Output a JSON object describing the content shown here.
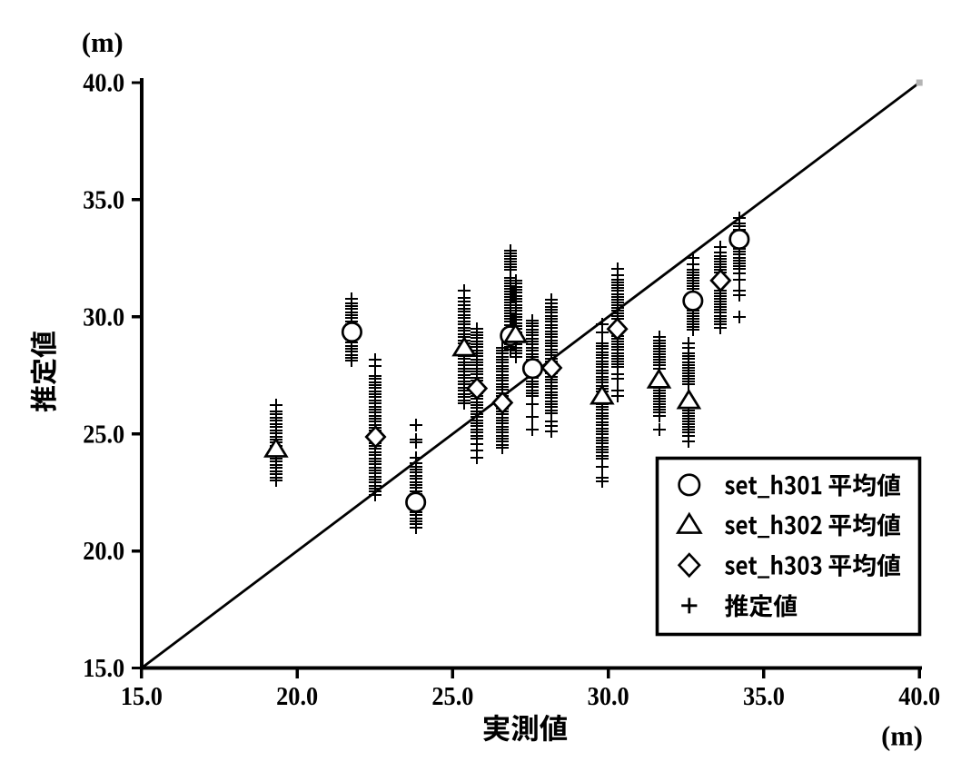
{
  "chart_data": {
    "type": "scatter",
    "title": "",
    "xlabel": "実測値",
    "ylabel": "推定値",
    "x_unit": "(m)",
    "y_unit": "(m)",
    "xlim": [
      15.0,
      40.0
    ],
    "ylim": [
      15.0,
      40.0
    ],
    "x_ticks": [
      "15.0",
      "20.0",
      "25.0",
      "30.0",
      "35.0",
      "40.0"
    ],
    "y_ticks": [
      "15.0",
      "20.0",
      "25.0",
      "30.0",
      "35.0",
      "40.0"
    ],
    "grid": false,
    "reference_line": {
      "x1": 15.0,
      "y1": 15.0,
      "x2": 40.0,
      "y2": 40.0
    },
    "legend_position": "lower right",
    "legend": [
      {
        "marker": "circle",
        "label": "set_h301 平均値"
      },
      {
        "marker": "triangle",
        "label": "set_h302 平均値"
      },
      {
        "marker": "diamond",
        "label": "set_h303 平均値"
      },
      {
        "marker": "plus",
        "label": "推定値"
      }
    ],
    "series": [
      {
        "name": "set_h301 平均値",
        "marker": "circle",
        "points": [
          [
            21.76,
            29.35
          ],
          [
            23.81,
            22.08
          ],
          [
            26.85,
            29.19
          ],
          [
            27.57,
            27.79
          ],
          [
            32.72,
            30.68
          ],
          [
            34.21,
            33.31
          ]
        ]
      },
      {
        "name": "set_h302 平均値",
        "marker": "triangle",
        "points": [
          [
            19.32,
            24.35
          ],
          [
            25.37,
            28.67
          ],
          [
            27.02,
            29.24
          ],
          [
            29.8,
            26.61
          ],
          [
            31.63,
            27.3
          ],
          [
            32.59,
            26.42
          ]
        ]
      },
      {
        "name": "set_h303 平均値",
        "marker": "diamond",
        "points": [
          [
            22.52,
            24.87
          ],
          [
            25.78,
            26.94
          ],
          [
            26.6,
            26.33
          ],
          [
            28.18,
            27.82
          ],
          [
            30.29,
            29.48
          ],
          [
            33.61,
            31.55
          ]
        ]
      },
      {
        "name": "推定値",
        "marker": "plus",
        "clusters": [
          {
            "x": 19.32,
            "y": [
              26.23,
              25.97,
              25.835,
              25.7,
              25.565,
              25.43,
              25.295,
              25.16,
              25.025,
              24.89,
              24.755,
              24.62,
              24.485,
              24.35,
              24.215,
              24.08,
              23.945,
              23.81,
              23.675,
              23.54,
              23.405,
              23.27,
              23.135,
              23.0
            ]
          },
          {
            "x": 21.76,
            "y": [
              30.78,
              30.59,
              30.46,
              30.33,
              30.2,
              30.07,
              29.94,
              29.81,
              29.68,
              29.55,
              29.42,
              29.29,
              29.16,
              29.03,
              28.9,
              28.77,
              28.64,
              28.51,
              28.38,
              28.25,
              28.12
            ]
          },
          {
            "x": 22.52,
            "y": [
              28.15,
              27.9,
              27.47,
              27.34,
              27.21,
              27.08,
              26.95,
              26.82,
              26.69,
              26.56,
              26.43,
              26.3,
              26.17,
              26.04,
              25.91,
              25.78,
              25.65,
              25.52,
              25.39,
              25.26,
              25.13,
              25.0,
              24.87,
              24.74,
              24.61,
              24.48,
              24.35,
              24.22,
              24.09,
              23.96,
              23.83,
              23.7,
              23.57,
              23.44,
              23.31,
              23.18,
              23.05,
              22.92,
              22.79,
              22.66,
              22.53,
              22.4
            ]
          },
          {
            "x": 23.81,
            "y": [
              25.36,
              24.77,
              24.62,
              23.97,
              23.73,
              23.6,
              23.47,
              23.34,
              23.21,
              23.08,
              22.95,
              22.82,
              22.69,
              22.56,
              22.43,
              22.3,
              22.17,
              22.04,
              21.91,
              21.78,
              21.65,
              21.52,
              21.39,
              21.26,
              21.13,
              21.0
            ]
          },
          {
            "x": 25.37,
            "y": [
              31.1,
              30.81,
              30.64,
              30.485,
              30.35,
              30.215,
              30.08,
              29.945,
              29.81,
              29.675,
              29.54,
              29.405,
              29.27,
              29.135,
              29.0,
              28.865,
              28.73,
              28.595,
              28.46,
              28.325,
              28.19,
              28.055,
              27.92,
              27.785,
              27.65,
              27.515,
              27.38,
              27.245,
              27.11,
              26.975,
              26.84,
              26.705,
              26.57,
              26.435,
              26.3
            ]
          },
          {
            "x": 25.78,
            "y": [
              29.48,
              29.35,
              29.22,
              29.09,
              28.96,
              28.83,
              28.7,
              28.57,
              28.44,
              28.31,
              28.18,
              28.05,
              27.92,
              27.79,
              27.66,
              27.53,
              27.4,
              27.27,
              27.14,
              27.01,
              26.88,
              26.75,
              26.62,
              26.49,
              26.36,
              26.23,
              26.1,
              25.97,
              25.84,
              25.71,
              25.58,
              25.45,
              25.32,
              25.19,
              25.06,
              24.93,
              24.8,
              24.57,
              24.28,
              23.99
            ]
          },
          {
            "x": 26.6,
            "y": [
              28.69,
              28.56,
              28.43,
              28.3,
              28.17,
              28.04,
              27.91,
              27.78,
              27.65,
              27.52,
              27.39,
              27.26,
              27.13,
              27.0,
              26.87,
              26.74,
              26.61,
              26.48,
              26.35,
              26.22,
              26.09,
              25.96,
              25.83,
              25.7,
              25.57,
              25.44,
              25.31,
              25.18,
              25.05,
              24.92,
              24.79,
              24.66,
              24.53,
              24.4
            ]
          },
          {
            "x": 26.85,
            "y": [
              32.826,
              32.708,
              32.59,
              32.472,
              32.354,
              32.236,
              32.118,
              32.0,
              31.668,
              31.55,
              31.432,
              31.314,
              31.196,
              31.078,
              30.96,
              30.842,
              30.724,
              30.606,
              30.488,
              30.37,
              30.252,
              30.134,
              30.016,
              29.898,
              29.78,
              29.662,
              29.544,
              29.426,
              29.308,
              29.19,
              29.072,
              28.954,
              28.836,
              28.718,
              28.6
            ]
          },
          {
            "x": 27.02,
            "y": [
              31.55,
              31.42,
              31.29,
              31.16,
              31.03,
              30.9,
              30.77,
              30.64,
              30.51,
              30.38,
              30.25,
              30.12,
              29.99,
              29.86,
              29.73,
              29.6,
              29.47,
              29.34,
              29.21,
              29.08,
              28.95,
              28.82,
              28.69,
              28.56,
              28.43,
              28.3
            ]
          },
          {
            "x": 27.57,
            "y": [
              29.85,
              29.72,
              29.59,
              29.46,
              29.33,
              29.2,
              29.07,
              28.94,
              28.81,
              28.68,
              28.55,
              28.42,
              28.29,
              28.16,
              28.03,
              27.9,
              27.77,
              27.64,
              27.51,
              27.38,
              27.25,
              27.12,
              26.99,
              26.86,
              26.73,
              26.6,
              26.27,
              25.72,
              25.2
            ]
          },
          {
            "x": 28.18,
            "y": [
              30.73,
              30.56,
              30.43,
              30.3,
              30.17,
              30.04,
              29.91,
              29.78,
              29.65,
              29.52,
              29.39,
              29.26,
              29.13,
              29.0,
              28.87,
              28.74,
              28.61,
              28.48,
              28.35,
              28.22,
              28.09,
              27.96,
              27.83,
              27.7,
              27.57,
              27.44,
              27.31,
              27.18,
              27.05,
              26.92,
              26.79,
              26.66,
              26.53,
              26.4,
              26.27,
              26.14,
              26.01,
              25.88,
              25.53,
              25.32,
              25.12
            ]
          },
          {
            "x": 29.8,
            "y": [
              29.69,
              29.34,
              28.88,
              28.75,
              28.62,
              28.49,
              28.36,
              28.23,
              28.1,
              27.97,
              27.84,
              27.71,
              27.58,
              27.45,
              27.32,
              27.19,
              27.06,
              26.93,
              26.8,
              26.67,
              26.54,
              26.41,
              26.28,
              26.15,
              26.02,
              25.89,
              25.76,
              25.63,
              25.5,
              25.37,
              25.24,
              25.11,
              24.98,
              24.85,
              24.72,
              24.59,
              24.46,
              24.33,
              24.2,
              24.07,
              23.94,
              23.6,
              23.12,
              22.98
            ]
          },
          {
            "x": 30.29,
            "y": [
              32.04,
              31.79,
              31.58,
              31.46,
              31.34,
              31.22,
              31.1,
              30.98,
              30.86,
              30.74,
              30.62,
              30.5,
              30.38,
              30.26,
              30.14,
              30.02,
              29.9,
              29.18,
              29.06,
              28.94,
              28.82,
              28.7,
              28.58,
              28.46,
              28.34,
              28.22,
              28.1,
              27.98,
              27.86,
              27.54,
              27.35,
              26.84,
              26.61
            ]
          },
          {
            "x": 31.63,
            "y": [
              29.12,
              29.0,
              28.88,
              28.76,
              28.64,
              28.52,
              28.4,
              28.28,
              28.16,
              28.04,
              27.92,
              27.8,
              26.98,
              26.86,
              26.74,
              26.62,
              26.5,
              26.38,
              26.26,
              26.14,
              26.02,
              25.9,
              25.78,
              25.2
            ]
          },
          {
            "x": 32.59,
            "y": [
              28.87,
              28.66,
              28.43,
              28.31,
              28.19,
              28.07,
              27.95,
              27.83,
              27.71,
              27.59,
              27.47,
              27.35,
              27.23,
              27.11,
              26.01,
              25.89,
              25.77,
              25.65,
              25.53,
              25.41,
              25.29,
              25.17,
              25.05,
              24.93,
              24.67
            ]
          },
          {
            "x": 32.72,
            "y": [
              32.5,
              32.24,
              32.006,
              31.888,
              31.77,
              31.652,
              31.534,
              31.416,
              31.298,
              31.18,
              30.964,
              30.846,
              30.728,
              30.61,
              30.492,
              30.374,
              30.256,
              30.138,
              30.02,
              29.902,
              29.784,
              29.666,
              29.548,
              29.43
            ]
          },
          {
            "x": 33.61,
            "y": [
              32.98,
              32.76,
              32.588,
              32.47,
              32.352,
              32.234,
              32.116,
              31.998,
              31.88,
              31.126,
              31.008,
              30.89,
              30.772,
              30.654,
              30.536,
              30.418,
              30.3,
              30.17,
              30.05,
              29.93,
              29.81,
              29.69,
              29.51
            ]
          },
          {
            "x": 34.21,
            "y": [
              34.21,
              33.99,
              33.86,
              33.73,
              33.6,
              33.47,
              33.004,
              32.886,
              32.768,
              32.65,
              32.532,
              32.414,
              32.296,
              32.178,
              32.06,
              31.84,
              31.58,
              31.11,
              30.92,
              29.99
            ]
          }
        ]
      }
    ]
  },
  "colors": {
    "ink": "#000000",
    "background": "#ffffff",
    "line_end_dot": "#b4b4b4"
  }
}
